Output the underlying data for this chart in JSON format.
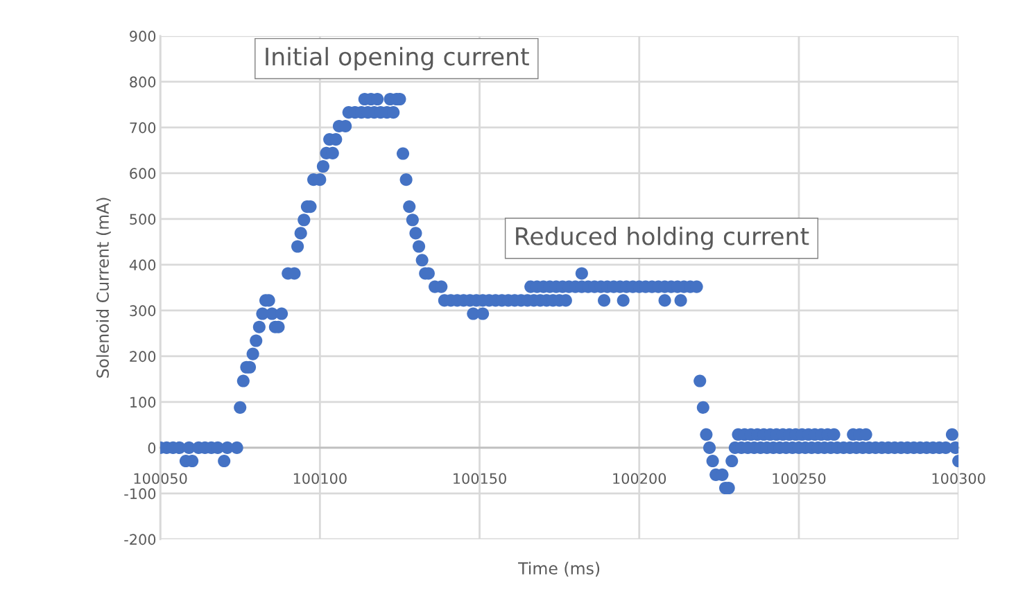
{
  "chart_data": {
    "type": "scatter",
    "xlabel": "Time (ms)",
    "ylabel": "Solenoid Current (mA)",
    "xlim": [
      100050,
      100300
    ],
    "xticks": [
      100050,
      100100,
      100150,
      100200,
      100250,
      100300
    ],
    "ylim": [
      -200,
      900
    ],
    "yticks": [
      -200,
      -100,
      0,
      100,
      200,
      300,
      400,
      500,
      600,
      700,
      800,
      900
    ],
    "grid": true,
    "marker": "circle",
    "annotations": [
      "Initial opening current",
      "Reduced holding current"
    ],
    "series": [
      {
        "color": "#4472c4",
        "x": [
          100050,
          100052,
          100054,
          100056,
          100058,
          100059,
          100060,
          100062,
          100064,
          100066,
          100068,
          100070,
          100071,
          100074,
          100075,
          100076,
          100077,
          100078,
          100079,
          100080,
          100081,
          100082,
          100083,
          100084,
          100085,
          100086,
          100087,
          100088,
          100090,
          100092,
          100093,
          100094,
          100095,
          100096,
          100097,
          100098,
          100100,
          100101,
          100102,
          100103,
          100104,
          100105,
          100106,
          100108,
          100109,
          100111,
          100113,
          100114,
          100115,
          100116,
          100117,
          100118,
          100119,
          100121,
          100122,
          100123,
          100124,
          100125,
          100126,
          100127,
          100128,
          100129,
          100130,
          100131,
          100132,
          100133,
          100134,
          100136,
          100138,
          100139,
          100141,
          100143,
          100145,
          100147,
          100148,
          100149,
          100151,
          100151,
          100153,
          100155,
          100157,
          100159,
          100161,
          100163,
          100165,
          100166,
          100167,
          100168,
          100169,
          100170,
          100171,
          100172,
          100173,
          100174,
          100175,
          100176,
          100177,
          100178,
          100180,
          100182,
          100182,
          100184,
          100186,
          100188,
          100189,
          100190,
          100192,
          100194,
          100195,
          100196,
          100198,
          100200,
          100202,
          100204,
          100206,
          100208,
          100208,
          100210,
          100212,
          100213,
          100214,
          100216,
          100218,
          100219,
          100220,
          100221,
          100222,
          100223,
          100224,
          100226,
          100227,
          100228,
          100229,
          100230,
          100231,
          100232,
          100233,
          100234,
          100235,
          100236,
          100237,
          100238,
          100239,
          100240,
          100241,
          100242,
          100243,
          100244,
          100245,
          100246,
          100247,
          100248,
          100249,
          100250,
          100251,
          100252,
          100253,
          100254,
          100255,
          100256,
          100257,
          100258,
          100259,
          100260,
          100261,
          100262,
          100264,
          100266,
          100267,
          100268,
          100269,
          100270,
          100271,
          100272,
          100274,
          100276,
          100278,
          100280,
          100282,
          100284,
          100286,
          100288,
          100290,
          100292,
          100294,
          100296,
          100298,
          100299,
          100300
        ],
        "values": [
          0,
          0,
          0,
          0,
          -29,
          0,
          -29,
          0,
          0,
          0,
          0,
          -29,
          0,
          0,
          88,
          146,
          176,
          176,
          205,
          234,
          264,
          293,
          322,
          322,
          293,
          264,
          264,
          293,
          381,
          381,
          440,
          469,
          498,
          527,
          527,
          586,
          586,
          615,
          644,
          674,
          644,
          674,
          703,
          703,
          733,
          733,
          733,
          762,
          733,
          762,
          733,
          762,
          733,
          733,
          762,
          733,
          762,
          762,
          643,
          586,
          527,
          498,
          469,
          440,
          410,
          381,
          381,
          352,
          352,
          322,
          322,
          322,
          322,
          322,
          293,
          322,
          293,
          322,
          322,
          322,
          322,
          322,
          322,
          322,
          322,
          352,
          322,
          352,
          322,
          352,
          322,
          352,
          322,
          352,
          322,
          352,
          322,
          352,
          352,
          381,
          352,
          352,
          352,
          352,
          322,
          352,
          352,
          352,
          322,
          352,
          352,
          352,
          352,
          352,
          352,
          322,
          352,
          352,
          352,
          322,
          352,
          352,
          352,
          146,
          88,
          29,
          0,
          -29,
          -59,
          -59,
          -88,
          -88,
          -29,
          0,
          29,
          0,
          29,
          0,
          29,
          0,
          29,
          0,
          29,
          0,
          29,
          0,
          29,
          0,
          29,
          0,
          29,
          0,
          29,
          0,
          29,
          0,
          29,
          0,
          29,
          0,
          29,
          0,
          29,
          0,
          29,
          0,
          0,
          0,
          29,
          0,
          29,
          0,
          29,
          0,
          0,
          0,
          0,
          0,
          0,
          0,
          0,
          0,
          0,
          0,
          0,
          0,
          29,
          0,
          -29
        ]
      }
    ]
  }
}
